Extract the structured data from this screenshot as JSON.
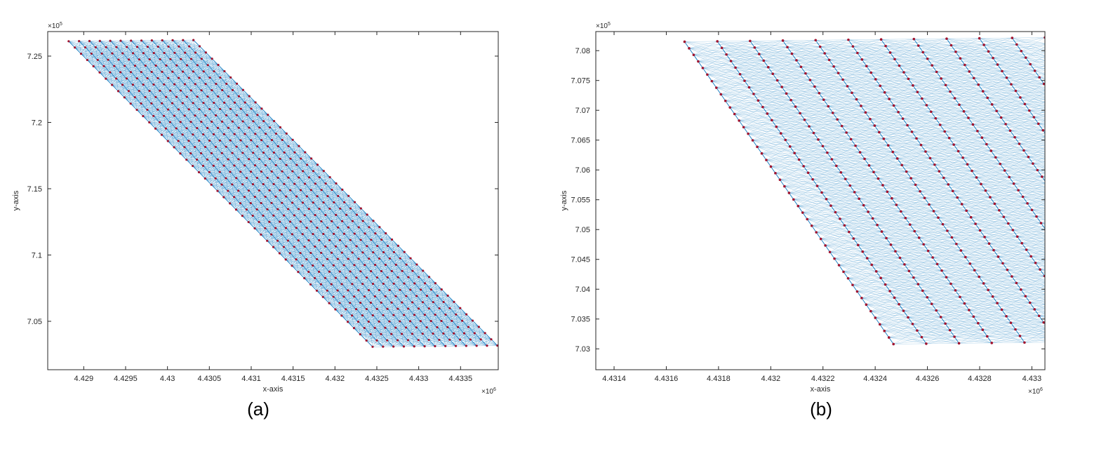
{
  "colors": {
    "mesh": "#0072BD",
    "node": "#A2142F",
    "axis": "#262626",
    "background": "#FFFFFF"
  },
  "chart_data": [
    {
      "type": "scatter",
      "caption": "(a)",
      "xlabel": "x-axis",
      "ylabel": "y-axis",
      "x_exponent": "×10",
      "x_exponent_power": "6",
      "y_exponent": "×10",
      "y_exponent_power": "5",
      "xlim": [
        4.42857,
        4.43395
      ],
      "ylim": [
        7.0135,
        7.2685
      ],
      "xticks": [
        4.429,
        4.4295,
        4.43,
        4.4305,
        4.431,
        4.4315,
        4.432,
        4.4325,
        4.433,
        4.4335
      ],
      "xtick_labels": [
        "4.429",
        "4.4295",
        "4.43",
        "4.4305",
        "4.431",
        "4.4315",
        "4.432",
        "4.4325",
        "4.433",
        "4.4335"
      ],
      "yticks": [
        7.05,
        7.1,
        7.15,
        7.2,
        7.25
      ],
      "ytick_labels": [
        "7.05",
        "7.1",
        "7.15",
        "7.2",
        "7.25"
      ],
      "grid": false,
      "mesh": {
        "corner_top_left": [
          4.42882,
          7.2612
        ],
        "corner_top_right": [
          4.43031,
          7.2621
        ],
        "corner_bottom_left": [
          4.43245,
          7.0308
        ],
        "corner_bottom_right": [
          4.43395,
          7.0325
        ],
        "columns": 13,
        "rows": 50
      }
    },
    {
      "type": "scatter",
      "caption": "(b)",
      "xlabel": "x-axis",
      "ylabel": "y-axis",
      "x_exponent": "×10",
      "x_exponent_power": "6",
      "y_exponent": "×10",
      "y_exponent_power": "5",
      "xlim": [
        4.43133,
        4.43305
      ],
      "ylim": [
        7.0265,
        7.0832
      ],
      "xticks": [
        4.4314,
        4.4316,
        4.4318,
        4.432,
        4.4322,
        4.4324,
        4.4326,
        4.4328,
        4.433
      ],
      "xtick_labels": [
        "4.4314",
        "4.4316",
        "4.4318",
        "4.432",
        "4.4322",
        "4.4324",
        "4.4326",
        "4.4328",
        "4.433"
      ],
      "yticks": [
        7.03,
        7.035,
        7.04,
        7.045,
        7.05,
        7.055,
        7.06,
        7.065,
        7.07,
        7.075,
        7.08
      ],
      "ytick_labels": [
        "7.03",
        "7.035",
        "7.04",
        "7.045",
        "7.05",
        "7.055",
        "7.06",
        "7.065",
        "7.07",
        "7.075",
        "7.08"
      ],
      "grid": false,
      "mesh": {
        "corner_top_left": [
          4.43167,
          7.0815
        ],
        "corner_top_right": [
          4.43305,
          7.0822
        ],
        "corner_bottom_left": [
          4.43247,
          7.0308
        ],
        "corner_bottom_right": [
          4.43305,
          7.0316
        ],
        "column_spacing_x": 0.00012,
        "row_spacing_y": 0.0011
      }
    }
  ]
}
